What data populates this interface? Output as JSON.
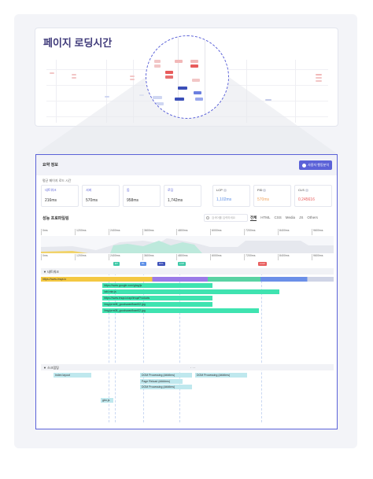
{
  "top_card": {
    "title": "페이지 로딩시간",
    "y_labels": [
      "",
      "",
      ""
    ]
  },
  "panel": {
    "summary_title": "요약 정보",
    "guide_button": "사용자 행동분석",
    "avg_label": "평균 페이지 로드 시간",
    "metrics": [
      {
        "label": "네트워크",
        "value": "216ms"
      },
      {
        "label": "서버",
        "value": "570ms"
      },
      {
        "label": "돔",
        "value": "958ms"
      },
      {
        "label": "로딩",
        "value": "1,742ms"
      }
    ],
    "vitals": [
      {
        "label": "LCP",
        "value": "1,102ms",
        "color": "#5b8ee6"
      },
      {
        "label": "FID",
        "value": "570ms",
        "color": "#f0a35c"
      },
      {
        "label": "CLS",
        "value": "0.245616",
        "color": "#e85b5b"
      }
    ],
    "perf_label": "성능 프로파일링",
    "search_placeholder": "검색어를 입력하세요",
    "tabs": [
      "전체",
      "HTML",
      "CSS",
      "Media",
      "JS",
      "Others"
    ],
    "axis_ticks": [
      "0ms",
      "1200ms",
      "2400ms",
      "3600ms",
      "4800ms",
      "6000ms",
      "7200ms",
      "8400ms",
      "9600ms"
    ],
    "markers": [
      {
        "label": "DT",
        "color": "#3ec9a7"
      },
      {
        "label": "DL",
        "color": "#5b8ee6"
      },
      {
        "label": "DCL",
        "color": "#3b4fb8"
      },
      {
        "label": "LCP",
        "color": "#3ec9a7"
      },
      {
        "label": "Load",
        "color": "#e85b5b"
      }
    ],
    "network_title": "네트워크",
    "network_rows": [
      "https://www.imqa.io",
      "https://www.google.com/gtag/js",
      "/abl.min.js",
      "https://www.imqa.io/api/imqaProducts",
      "/img/prm08_goodswarl/bant02.jpg",
      "/img/prm08_goodswarl/bant02.jpg"
    ],
    "script_title": "스크립팅",
    "ellipsis": "· · ·",
    "script_rows": [
      "Index layout",
      "DOM Processing (####ms)",
      "DOM Processing (####ms)",
      "Page Reload (####ms)",
      "DOM Processing (####ms)",
      "gtm.js"
    ]
  }
}
